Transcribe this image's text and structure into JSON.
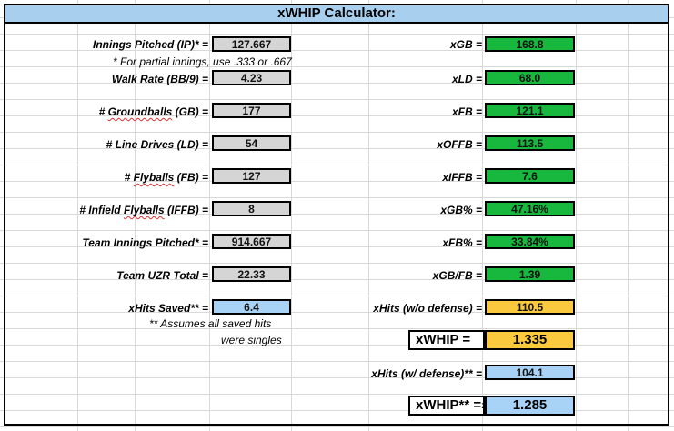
{
  "title": "xWHIP Calculator:",
  "inputs": {
    "ip_label": "Innings Pitched (IP)* =",
    "ip_value": "127.667",
    "ip_note": "* For partial innings, use .333 or .667",
    "bb9_label": "Walk Rate (BB/9) =",
    "bb9_value": "4.23",
    "gb_label_pre": "# ",
    "gb_label_word": "Groundballs",
    "gb_label_post": " (GB)  =",
    "gb_value": "177",
    "ld_label": "# Line Drives (LD) =",
    "ld_value": "54",
    "fb_label_pre": "# ",
    "fb_label_word": "Flyballs",
    "fb_label_post": " (FB)  =",
    "fb_value": "127",
    "iffb_label_pre": "# Infield ",
    "iffb_label_word": "Flyballs",
    "iffb_label_post": " (IFFB)  =",
    "iffb_value": "8",
    "team_ip_label": "Team Innings Pitched* =",
    "team_ip_value": "914.667",
    "uzr_label": "Team UZR Total =",
    "uzr_value": "22.33",
    "hits_saved_label": "xHits Saved** =",
    "hits_saved_value": "6.4",
    "hits_saved_note1": "** Assumes all saved hits",
    "hits_saved_note2": "were singles"
  },
  "outputs": {
    "xgb_label": "xGB =",
    "xgb_value": "168.8",
    "xld_label": "xLD =",
    "xld_value": "68.0",
    "xfb_label": "xFB =",
    "xfb_value": "121.1",
    "xoffb_label": "xOFFB =",
    "xoffb_value": "113.5",
    "xiffb_label": "xIFFB =",
    "xiffb_value": "7.6",
    "xgbpct_label": "xGB% =",
    "xgbpct_value": "47.16%",
    "xfbpct_label": "xFB% =",
    "xfbpct_value": "33.84%",
    "xgbfb_label": "xGB/FB =",
    "xgbfb_value": "1.39",
    "xhits_nodef_label": "xHits (w/o defense) =",
    "xhits_nodef_value": "110.5",
    "xwhip_label": "xWHIP =",
    "xwhip_value": "1.335",
    "xhits_def_label": "xHits (w/ defense)** =",
    "xhits_def_value": "104.1",
    "xwhip2_label": "xWHIP** =",
    "xwhip2_arrow": "›",
    "xwhip2_value": "1.285"
  },
  "colors": {
    "title_bg": "#a8cfee",
    "input_bg": "#d5d5d5",
    "output_bg": "#18b83e",
    "highlight_blue": "#a9d3f6",
    "highlight_gold": "#fbc93e"
  }
}
